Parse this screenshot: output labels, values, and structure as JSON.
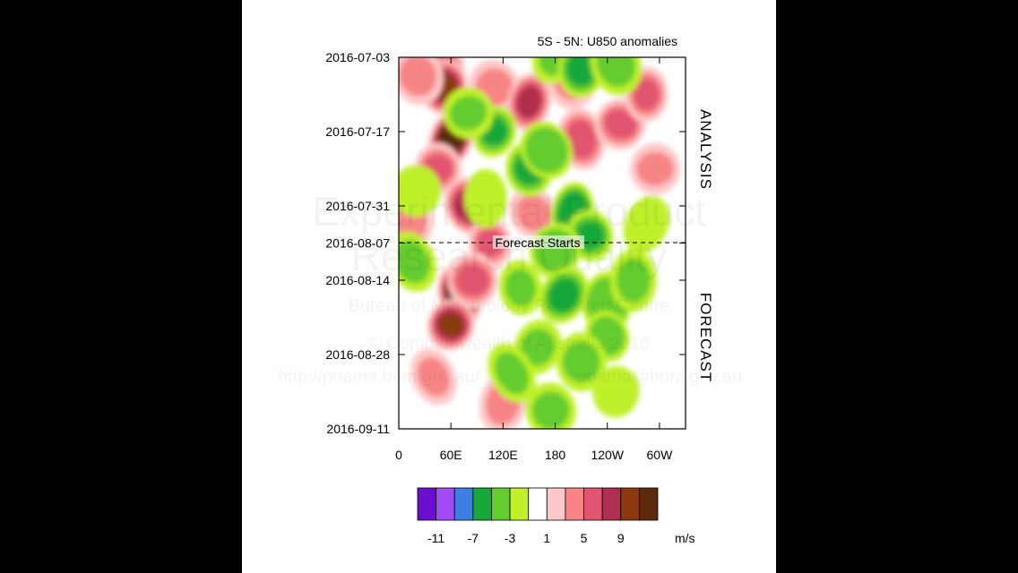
{
  "chart_data": {
    "type": "heatmap",
    "title": "5S - 5N: U850 anomalies",
    "x_ticks": [
      "0",
      "60E",
      "120E",
      "180",
      "120W",
      "60W"
    ],
    "y_ticks": [
      "2016-07-03",
      "2016-07-17",
      "2016-07-31",
      "2016-08-07",
      "2016-08-14",
      "2016-08-28",
      "2016-09-11"
    ],
    "forecast_start": "2016-08-07",
    "forecast_label": "Forecast Starts",
    "sections": [
      "ANALYSIS",
      "FORECAST"
    ],
    "colorbar": {
      "levels": [
        -11,
        -9,
        -7,
        -5,
        -3,
        -1,
        1,
        3,
        5,
        7,
        9,
        11
      ],
      "labels": [
        "-11",
        "-7",
        "-3",
        "1",
        "5",
        "9"
      ],
      "units": "m/s",
      "colors": [
        "#6a0ecf",
        "#a04bf5",
        "#3c7ee2",
        "#16a83b",
        "#63cc2e",
        "#bff02a",
        "#ffffff",
        "#ffc8c8",
        "#f78585",
        "#e25470",
        "#b02e4e",
        "#8a3a0c",
        "#5a2a0a"
      ]
    },
    "blobs": [
      {
        "lon": 50,
        "t": 0.02,
        "v": 6
      },
      {
        "lon": 52,
        "t": 0.08,
        "v": 10
      },
      {
        "lon": 22,
        "t": 0.05,
        "v": 4
      },
      {
        "lon": 60,
        "t": 0.22,
        "v": 12
      },
      {
        "lon": 45,
        "t": 0.3,
        "v": 6
      },
      {
        "lon": 110,
        "t": 0.08,
        "v": 4
      },
      {
        "lon": 150,
        "t": 0.12,
        "v": 7
      },
      {
        "lon": 210,
        "t": 0.22,
        "v": 5
      },
      {
        "lon": 255,
        "t": 0.18,
        "v": 6
      },
      {
        "lon": 285,
        "t": 0.1,
        "v": 5
      },
      {
        "lon": 80,
        "t": 0.4,
        "v": 8
      },
      {
        "lon": 10,
        "t": 0.45,
        "v": 3
      },
      {
        "lon": 105,
        "t": 0.5,
        "v": 5
      },
      {
        "lon": 155,
        "t": 0.42,
        "v": 4
      },
      {
        "lon": 200,
        "t": 0.06,
        "v": 4
      },
      {
        "lon": 70,
        "t": 0.64,
        "v": 12
      },
      {
        "lon": 60,
        "t": 0.72,
        "v": 9
      },
      {
        "lon": 85,
        "t": 0.6,
        "v": 6
      },
      {
        "lon": 40,
        "t": 0.86,
        "v": 3
      },
      {
        "lon": 120,
        "t": 0.93,
        "v": 4
      },
      {
        "lon": 295,
        "t": 0.3,
        "v": 3
      },
      {
        "lon": 180,
        "t": 0.0,
        "v": -4
      },
      {
        "lon": 210,
        "t": 0.03,
        "v": -6
      },
      {
        "lon": 250,
        "t": 0.02,
        "v": -4
      },
      {
        "lon": 110,
        "t": 0.2,
        "v": -6
      },
      {
        "lon": 150,
        "t": 0.3,
        "v": -6
      },
      {
        "lon": 170,
        "t": 0.25,
        "v": -5
      },
      {
        "lon": 200,
        "t": 0.42,
        "v": -7
      },
      {
        "lon": 220,
        "t": 0.48,
        "v": -6
      },
      {
        "lon": 180,
        "t": 0.52,
        "v": -5
      },
      {
        "lon": 100,
        "t": 0.38,
        "v": -3
      },
      {
        "lon": 15,
        "t": 0.55,
        "v": -4
      },
      {
        "lon": 20,
        "t": 0.36,
        "v": -3
      },
      {
        "lon": 140,
        "t": 0.62,
        "v": -4
      },
      {
        "lon": 190,
        "t": 0.64,
        "v": -6
      },
      {
        "lon": 240,
        "t": 0.66,
        "v": -5
      },
      {
        "lon": 240,
        "t": 0.75,
        "v": -5
      },
      {
        "lon": 160,
        "t": 0.78,
        "v": -4
      },
      {
        "lon": 210,
        "t": 0.82,
        "v": -4
      },
      {
        "lon": 130,
        "t": 0.85,
        "v": -4
      },
      {
        "lon": 250,
        "t": 0.9,
        "v": -3
      },
      {
        "lon": 175,
        "t": 0.95,
        "v": -4
      },
      {
        "lon": 285,
        "t": 0.45,
        "v": -3
      },
      {
        "lon": 270,
        "t": 0.6,
        "v": -4
      },
      {
        "lon": 80,
        "t": 0.15,
        "v": -4
      }
    ]
  },
  "watermark": {
    "line1": "Experimental Product",
    "line2": "Research Quality",
    "line3": "Bureau of Meteorology Research Centre",
    "line4": "© Commonwealth of Australia 2016",
    "url1": "http://poama.bom.gov.au/",
    "url2": "poama@bom.gov.au"
  }
}
